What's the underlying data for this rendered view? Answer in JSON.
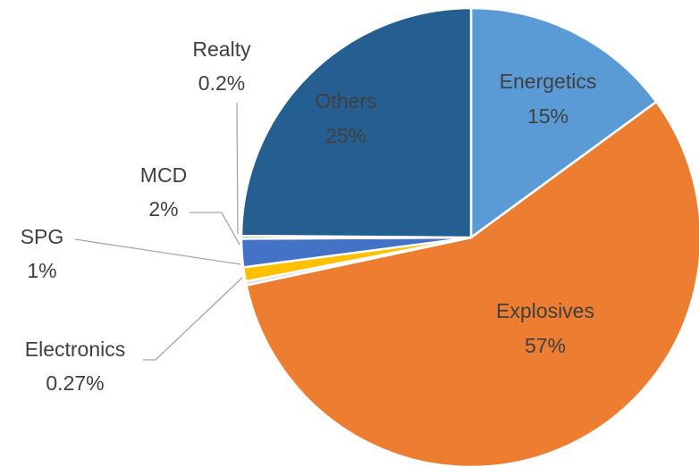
{
  "chart_data": {
    "type": "pie",
    "categories": [
      "Energetics",
      "Explosives",
      "Electronics",
      "SPG",
      "MCD",
      "Realty",
      "Others"
    ],
    "values": [
      15,
      57,
      0.27,
      1,
      2,
      0.2,
      25
    ],
    "value_labels": [
      "15%",
      "57%",
      "0.27%",
      "1%",
      "2%",
      "0.2%",
      "25%"
    ],
    "colors": [
      "#5b9bd5",
      "#ed7d31",
      "#d9d9d9",
      "#ffc000",
      "#4472c4",
      "#70ad47",
      "#255e91"
    ]
  }
}
